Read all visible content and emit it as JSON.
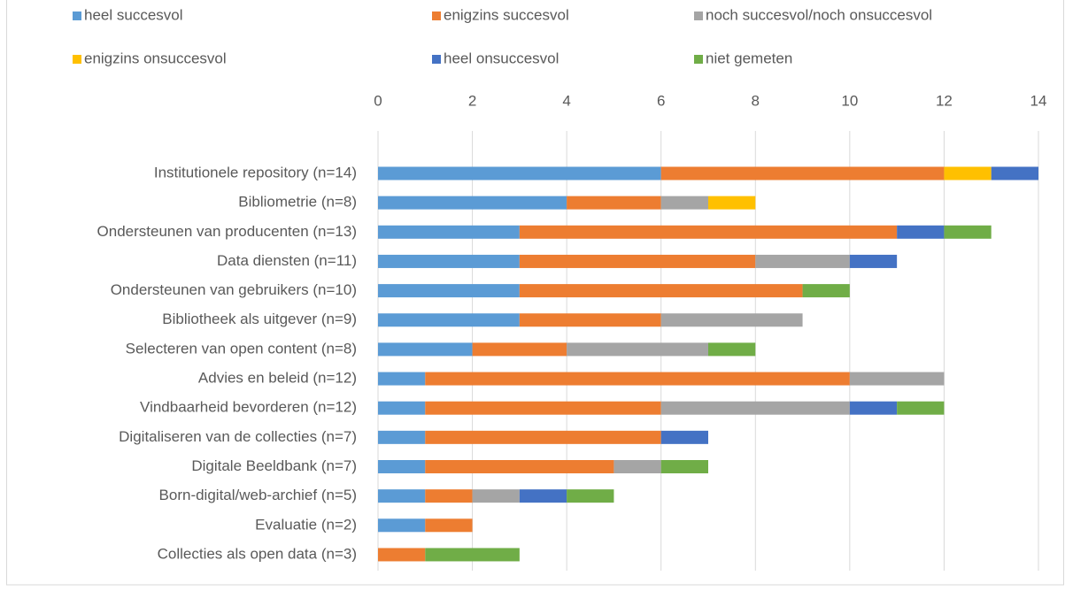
{
  "chart_data": {
    "type": "stacked_bar_horizontal",
    "categories": [
      "Institutionele repository (n=14)",
      "Bibliometrie (n=8)",
      "Ondersteunen van producenten (n=13)",
      "Data diensten (n=11)",
      "Ondersteunen van gebruikers (n=10)",
      "Bibliotheek als uitgever (n=9)",
      "Selecteren van open content (n=8)",
      "Advies en beleid (n=12)",
      "Vindbaarheid bevorderen (n=12)",
      "Digitaliseren van de collecties (n=7)",
      "Digitale Beeldbank (n=7)",
      "Born-digital/web-archief (n=5)",
      "Evaluatie (n=2)",
      "Collecties als open data (n=3)"
    ],
    "series": [
      {
        "name": "heel succesvol",
        "color": "#5b9bd5",
        "values": [
          6,
          4,
          3,
          3,
          3,
          3,
          2,
          1,
          1,
          1,
          1,
          1,
          1,
          0
        ]
      },
      {
        "name": "enigzins succesvol",
        "color": "#ed7d31",
        "values": [
          6,
          2,
          8,
          5,
          6,
          3,
          2,
          9,
          5,
          5,
          4,
          1,
          1,
          1
        ]
      },
      {
        "name": "noch succesvol/noch onsuccesvol",
        "color": "#a5a5a5",
        "values": [
          0,
          1,
          0,
          2,
          0,
          3,
          3,
          2,
          4,
          0,
          1,
          1,
          0,
          0
        ]
      },
      {
        "name": "enigzins onsuccesvol",
        "color": "#ffc000",
        "values": [
          1,
          1,
          0,
          0,
          0,
          0,
          0,
          0,
          0,
          0,
          0,
          0,
          0,
          0
        ]
      },
      {
        "name": "heel onsuccesvol",
        "color": "#4472c4",
        "values": [
          1,
          0,
          1,
          1,
          0,
          0,
          0,
          0,
          1,
          1,
          0,
          1,
          0,
          0
        ]
      },
      {
        "name": "niet gemeten",
        "color": "#70ad47",
        "values": [
          0,
          0,
          1,
          0,
          1,
          0,
          1,
          0,
          1,
          0,
          1,
          1,
          0,
          2
        ]
      }
    ],
    "xlim": [
      0,
      14
    ],
    "xticks": [
      0,
      2,
      4,
      6,
      8,
      10,
      12,
      14
    ],
    "grid": true,
    "legend": "top"
  }
}
